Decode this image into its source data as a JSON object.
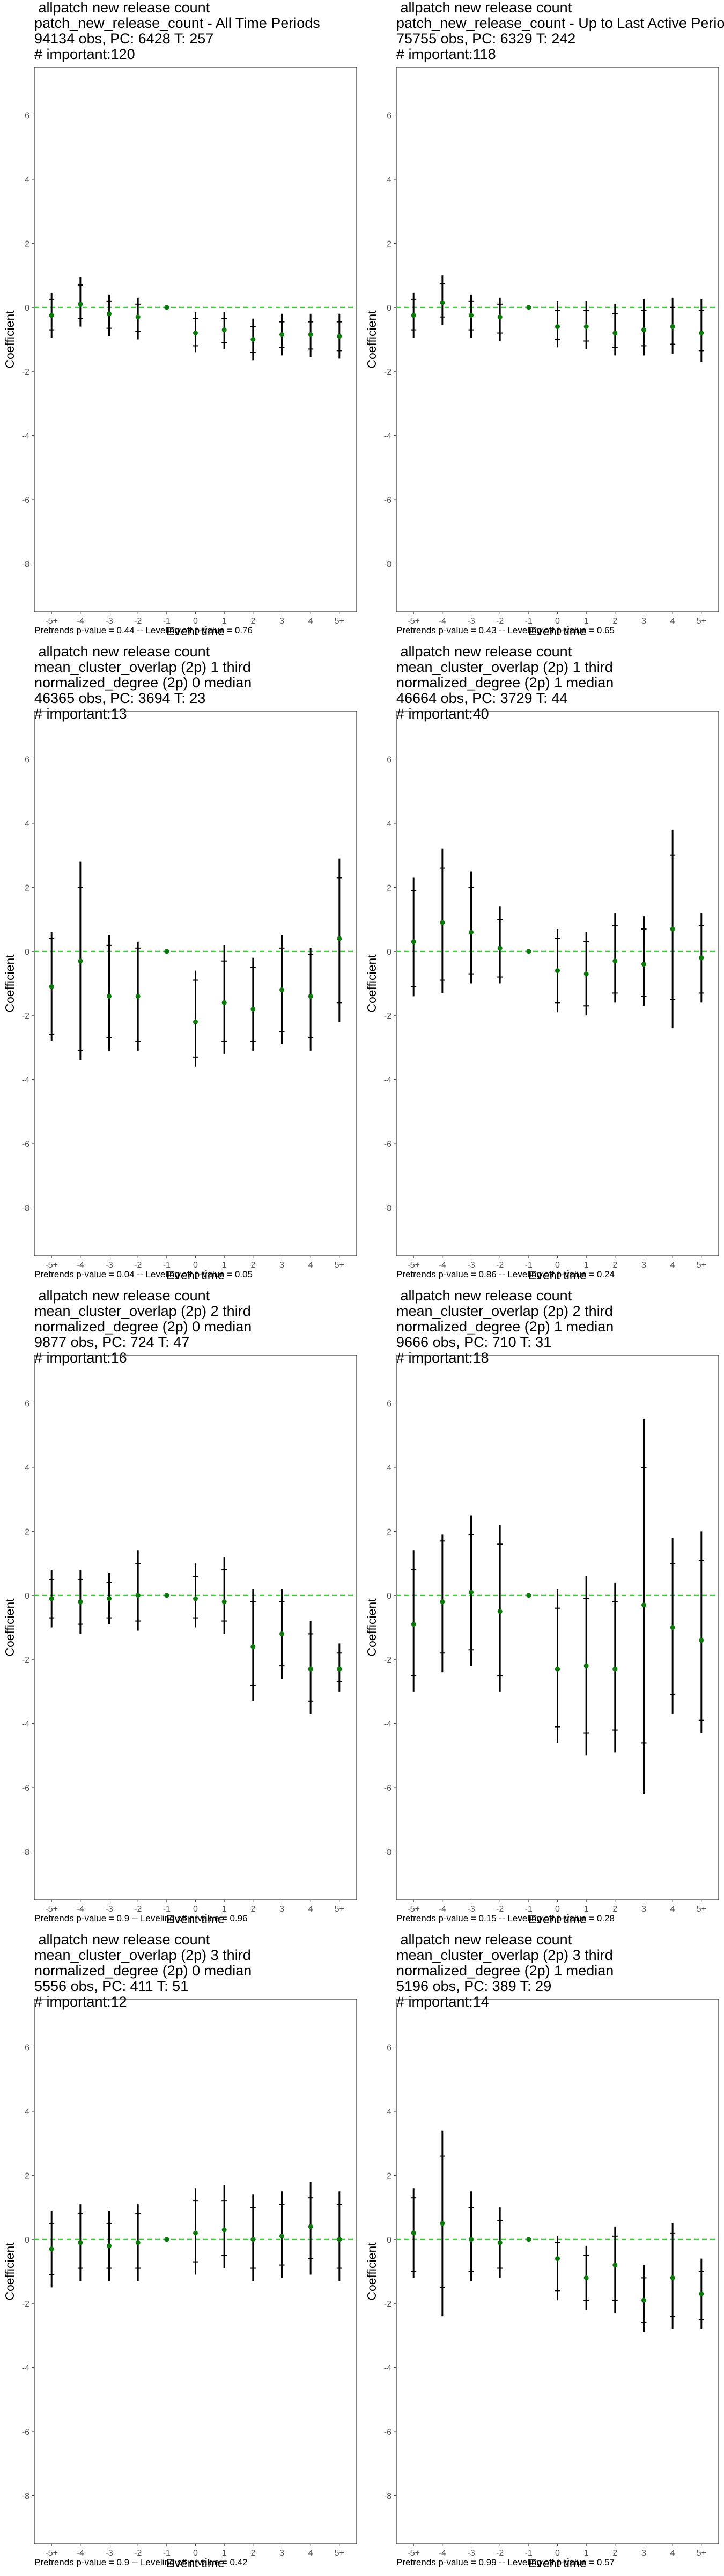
{
  "chart_data": [
    {
      "type": "scatter",
      "title_lines": [
        " allpatch new release count",
        "patch_new_release_count - All Time Periods",
        "94134 obs, PC: 6428 T: 257",
        "# important:120"
      ],
      "xlabel": "Event time",
      "ylabel": "Coefficient",
      "categories": [
        "-5+",
        "-4",
        "-3",
        "-2",
        "-1",
        "0",
        "1",
        "2",
        "3",
        "4",
        "5+"
      ],
      "ylim": [
        -9.5,
        7.5
      ],
      "yticks": [
        -8,
        -6,
        -4,
        -2,
        0,
        2,
        4,
        6
      ],
      "reference_line": 0,
      "estimate": [
        -0.25,
        0.1,
        -0.2,
        -0.3,
        0,
        -0.8,
        -0.7,
        -1.0,
        -0.85,
        -0.85,
        -0.9
      ],
      "ci_outer": [
        [
          -0.95,
          0.45
        ],
        [
          -0.6,
          0.95
        ],
        [
          -0.9,
          0.4
        ],
        [
          -1.0,
          0.3
        ],
        [
          0,
          0
        ],
        [
          -1.4,
          -0.15
        ],
        [
          -1.3,
          -0.15
        ],
        [
          -1.65,
          -0.35
        ],
        [
          -1.5,
          -0.2
        ],
        [
          -1.55,
          -0.2
        ],
        [
          -1.6,
          -0.2
        ]
      ],
      "ci_inner": [
        [
          -0.7,
          0.25
        ],
        [
          -0.35,
          0.7
        ],
        [
          -0.65,
          0.2
        ],
        [
          -0.75,
          0.1
        ],
        [
          0,
          0
        ],
        [
          -1.2,
          -0.35
        ],
        [
          -1.1,
          -0.35
        ],
        [
          -1.4,
          -0.6
        ],
        [
          -1.25,
          -0.45
        ],
        [
          -1.3,
          -0.45
        ],
        [
          -1.35,
          -0.45
        ]
      ],
      "footer": "Pretrends p-value = 0.44 -- Leveling off p-value = 0.76"
    },
    {
      "type": "scatter",
      "title_lines": [
        " allpatch new release count",
        "patch_new_release_count - Up to Last Active Period",
        "75755 obs, PC: 6329 T: 242",
        "# important:118"
      ],
      "xlabel": "Event time",
      "ylabel": "Coefficient",
      "categories": [
        "-5+",
        "-4",
        "-3",
        "-2",
        "-1",
        "0",
        "1",
        "2",
        "3",
        "4",
        "5+"
      ],
      "ylim": [
        -9.5,
        7.5
      ],
      "yticks": [
        -8,
        -6,
        -4,
        -2,
        0,
        2,
        4,
        6
      ],
      "reference_line": 0,
      "estimate": [
        -0.25,
        0.15,
        -0.25,
        -0.3,
        0,
        -0.6,
        -0.6,
        -0.8,
        -0.7,
        -0.6,
        -0.8
      ],
      "ci_outer": [
        [
          -0.95,
          0.45
        ],
        [
          -0.55,
          1.0
        ],
        [
          -0.95,
          0.4
        ],
        [
          -1.05,
          0.3
        ],
        [
          0,
          0
        ],
        [
          -1.25,
          0.2
        ],
        [
          -1.3,
          0.2
        ],
        [
          -1.5,
          0.1
        ],
        [
          -1.5,
          0.25
        ],
        [
          -1.45,
          0.3
        ],
        [
          -1.7,
          0.25
        ]
      ],
      "ci_inner": [
        [
          -0.7,
          0.25
        ],
        [
          -0.3,
          0.75
        ],
        [
          -0.7,
          0.2
        ],
        [
          -0.8,
          0.1
        ],
        [
          0,
          0
        ],
        [
          -1.0,
          -0.1
        ],
        [
          -1.05,
          -0.1
        ],
        [
          -1.25,
          -0.2
        ],
        [
          -1.2,
          -0.1
        ],
        [
          -1.15,
          0.0
        ],
        [
          -1.35,
          -0.1
        ]
      ],
      "footer": "Pretrends p-value = 0.43 -- Leveling off p-value = 0.65"
    },
    {
      "type": "scatter",
      "title_lines": [
        " allpatch new release count",
        "mean_cluster_overlap (2p) 1 third",
        "normalized_degree (2p) 0 median",
        "46365 obs, PC: 3694 T: 23",
        "# important:13"
      ],
      "xlabel": "Event time",
      "ylabel": "Coefficient",
      "categories": [
        "-5+",
        "-4",
        "-3",
        "-2",
        "-1",
        "0",
        "1",
        "2",
        "3",
        "4",
        "5+"
      ],
      "ylim": [
        -9.5,
        7.5
      ],
      "yticks": [
        -8,
        -6,
        -4,
        -2,
        0,
        2,
        4,
        6
      ],
      "reference_line": 0,
      "estimate": [
        -1.1,
        -0.3,
        -1.4,
        -1.4,
        0,
        -2.2,
        -1.6,
        -1.8,
        -1.2,
        -1.4,
        0.4
      ],
      "ci_outer": [
        [
          -2.8,
          0.6
        ],
        [
          -3.4,
          2.8
        ],
        [
          -3.1,
          0.5
        ],
        [
          -3.1,
          0.3
        ],
        [
          0,
          0
        ],
        [
          -3.6,
          -0.6
        ],
        [
          -3.2,
          0.2
        ],
        [
          -3.1,
          -0.2
        ],
        [
          -2.9,
          0.5
        ],
        [
          -3.1,
          0.1
        ],
        [
          -2.2,
          2.9
        ]
      ],
      "ci_inner": [
        [
          -2.6,
          0.4
        ],
        [
          -3.1,
          2.0
        ],
        [
          -2.7,
          0.2
        ],
        [
          -2.8,
          0.1
        ],
        [
          0,
          0
        ],
        [
          -3.3,
          -0.9
        ],
        [
          -2.8,
          -0.3
        ],
        [
          -2.8,
          -0.5
        ],
        [
          -2.5,
          0.1
        ],
        [
          -2.7,
          -0.1
        ],
        [
          -1.6,
          2.3
        ]
      ],
      "footer": "Pretrends p-value = 0.04 -- Leveling off p-value = 0.05"
    },
    {
      "type": "scatter",
      "title_lines": [
        " allpatch new release count",
        "mean_cluster_overlap (2p) 1 third",
        "normalized_degree (2p) 1 median",
        "46664 obs, PC: 3729 T: 44",
        "# important:40"
      ],
      "xlabel": "Event time",
      "ylabel": "Coefficient",
      "categories": [
        "-5+",
        "-4",
        "-3",
        "-2",
        "-1",
        "0",
        "1",
        "2",
        "3",
        "4",
        "5+"
      ],
      "ylim": [
        -9.5,
        7.5
      ],
      "yticks": [
        -8,
        -6,
        -4,
        -2,
        0,
        2,
        4,
        6
      ],
      "reference_line": 0,
      "estimate": [
        0.3,
        0.9,
        0.6,
        0.1,
        0,
        -0.6,
        -0.7,
        -0.3,
        -0.4,
        0.7,
        -0.2
      ],
      "ci_outer": [
        [
          -1.4,
          2.3
        ],
        [
          -1.3,
          3.2
        ],
        [
          -1.0,
          2.5
        ],
        [
          -1.0,
          1.4
        ],
        [
          0,
          0
        ],
        [
          -1.9,
          0.7
        ],
        [
          -2.0,
          0.6
        ],
        [
          -1.6,
          1.2
        ],
        [
          -1.7,
          1.1
        ],
        [
          -2.4,
          3.8
        ],
        [
          -1.6,
          1.2
        ]
      ],
      "ci_inner": [
        [
          -1.1,
          1.9
        ],
        [
          -0.9,
          2.6
        ],
        [
          -0.7,
          2.0
        ],
        [
          -0.8,
          1.0
        ],
        [
          0,
          0
        ],
        [
          -1.6,
          0.4
        ],
        [
          -1.7,
          0.3
        ],
        [
          -1.3,
          0.8
        ],
        [
          -1.4,
          0.7
        ],
        [
          -1.5,
          3.0
        ],
        [
          -1.3,
          0.8
        ]
      ],
      "footer": "Pretrends p-value = 0.86 -- Leveling off p-value = 0.24"
    },
    {
      "type": "scatter",
      "title_lines": [
        " allpatch new release count",
        "mean_cluster_overlap (2p) 2 third",
        "normalized_degree (2p) 0 median",
        "9877 obs, PC: 724 T: 47",
        "# important:16"
      ],
      "xlabel": "Event time",
      "ylabel": "Coefficient",
      "categories": [
        "-5+",
        "-4",
        "-3",
        "-2",
        "-1",
        "0",
        "1",
        "2",
        "3",
        "4",
        "5+"
      ],
      "ylim": [
        -9.5,
        7.5
      ],
      "yticks": [
        -8,
        -6,
        -4,
        -2,
        0,
        2,
        4,
        6
      ],
      "reference_line": 0,
      "estimate": [
        -0.1,
        -0.2,
        -0.1,
        0.0,
        0,
        -0.1,
        -0.2,
        -1.6,
        -1.2,
        -2.3,
        -2.3
      ],
      "ci_outer": [
        [
          -1.0,
          0.8
        ],
        [
          -1.2,
          0.8
        ],
        [
          -0.9,
          0.7
        ],
        [
          -1.1,
          1.4
        ],
        [
          0,
          0
        ],
        [
          -1.0,
          1.0
        ],
        [
          -1.2,
          1.2
        ],
        [
          -3.3,
          0.2
        ],
        [
          -2.6,
          0.2
        ],
        [
          -3.7,
          -0.8
        ],
        [
          -3.0,
          -1.5
        ]
      ],
      "ci_inner": [
        [
          -0.7,
          0.5
        ],
        [
          -0.9,
          0.5
        ],
        [
          -0.7,
          0.4
        ],
        [
          -0.8,
          1.0
        ],
        [
          0,
          0
        ],
        [
          -0.7,
          0.6
        ],
        [
          -0.8,
          0.8
        ],
        [
          -2.8,
          -0.2
        ],
        [
          -2.2,
          -0.2
        ],
        [
          -3.3,
          -1.2
        ],
        [
          -2.7,
          -1.8
        ]
      ],
      "footer": "Pretrends p-value = 0.9 -- Leveling off p-value = 0.96"
    },
    {
      "type": "scatter",
      "title_lines": [
        " allpatch new release count",
        "mean_cluster_overlap (2p) 2 third",
        "normalized_degree (2p) 1 median",
        "9666 obs, PC: 710 T: 31",
        "# important:18"
      ],
      "xlabel": "Event time",
      "ylabel": "Coefficient",
      "categories": [
        "-5+",
        "-4",
        "-3",
        "-2",
        "-1",
        "0",
        "1",
        "2",
        "3",
        "4",
        "5+"
      ],
      "ylim": [
        -9.5,
        7.5
      ],
      "yticks": [
        -8,
        -6,
        -4,
        -2,
        0,
        2,
        4,
        6
      ],
      "reference_line": 0,
      "estimate": [
        -0.9,
        -0.2,
        0.1,
        -0.5,
        0,
        -2.3,
        -2.2,
        -2.3,
        -0.3,
        -1.0,
        -1.4
      ],
      "ci_outer": [
        [
          -3.0,
          1.4
        ],
        [
          -2.4,
          1.9
        ],
        [
          -2.2,
          2.5
        ],
        [
          -3.0,
          2.2
        ],
        [
          0,
          0
        ],
        [
          -4.6,
          0.2
        ],
        [
          -5.0,
          0.6
        ],
        [
          -4.9,
          0.4
        ],
        [
          -6.2,
          5.5
        ],
        [
          -3.7,
          1.8
        ],
        [
          -4.3,
          2.0
        ]
      ],
      "ci_inner": [
        [
          -2.5,
          0.8
        ],
        [
          -1.8,
          1.7
        ],
        [
          -1.7,
          1.9
        ],
        [
          -2.5,
          1.6
        ],
        [
          0,
          0
        ],
        [
          -4.1,
          -0.4
        ],
        [
          -4.3,
          -0.1
        ],
        [
          -4.2,
          -0.2
        ],
        [
          -4.6,
          4.0
        ],
        [
          -3.1,
          1.0
        ],
        [
          -3.9,
          1.1
        ]
      ],
      "footer": "Pretrends p-value = 0.15 -- Leveling off p-value = 0.28"
    },
    {
      "type": "scatter",
      "title_lines": [
        " allpatch new release count",
        "mean_cluster_overlap (2p) 3 third",
        "normalized_degree (2p) 0 median",
        "5556 obs, PC: 411 T: 51",
        "# important:12"
      ],
      "xlabel": "Event time",
      "ylabel": "Coefficient",
      "categories": [
        "-5+",
        "-4",
        "-3",
        "-2",
        "-1",
        "0",
        "1",
        "2",
        "3",
        "4",
        "5+"
      ],
      "ylim": [
        -9.5,
        7.5
      ],
      "yticks": [
        -8,
        -6,
        -4,
        -2,
        0,
        2,
        4,
        6
      ],
      "reference_line": 0,
      "estimate": [
        -0.3,
        -0.1,
        -0.2,
        -0.1,
        0,
        0.2,
        0.3,
        0.0,
        0.1,
        0.4,
        0.0
      ],
      "ci_outer": [
        [
          -1.5,
          0.9
        ],
        [
          -1.3,
          1.1
        ],
        [
          -1.3,
          0.9
        ],
        [
          -1.3,
          1.1
        ],
        [
          0,
          0
        ],
        [
          -1.1,
          1.6
        ],
        [
          -0.9,
          1.7
        ],
        [
          -1.3,
          1.4
        ],
        [
          -1.2,
          1.5
        ],
        [
          -1.1,
          1.8
        ],
        [
          -1.3,
          1.5
        ]
      ],
      "ci_inner": [
        [
          -1.1,
          0.5
        ],
        [
          -0.9,
          0.8
        ],
        [
          -0.9,
          0.5
        ],
        [
          -0.9,
          0.8
        ],
        [
          0,
          0
        ],
        [
          -0.7,
          1.2
        ],
        [
          -0.5,
          1.2
        ],
        [
          -0.9,
          1.0
        ],
        [
          -0.8,
          1.1
        ],
        [
          -0.6,
          1.3
        ],
        [
          -0.9,
          1.1
        ]
      ],
      "footer": "Pretrends p-value = 0.9 -- Leveling off p-value = 0.42"
    },
    {
      "type": "scatter",
      "title_lines": [
        " allpatch new release count",
        "mean_cluster_overlap (2p) 3 third",
        "normalized_degree (2p) 1 median",
        "5196 obs, PC: 389 T: 29",
        "# important:14"
      ],
      "xlabel": "Event time",
      "ylabel": "Coefficient",
      "categories": [
        "-5+",
        "-4",
        "-3",
        "-2",
        "-1",
        "0",
        "1",
        "2",
        "3",
        "4",
        "5+"
      ],
      "ylim": [
        -9.5,
        7.5
      ],
      "yticks": [
        -8,
        -6,
        -4,
        -2,
        0,
        2,
        4,
        6
      ],
      "reference_line": 0,
      "estimate": [
        0.2,
        0.5,
        0.0,
        -0.1,
        0,
        -0.6,
        -1.2,
        -0.8,
        -1.9,
        -1.2,
        -1.7
      ],
      "ci_outer": [
        [
          -1.2,
          1.6
        ],
        [
          -2.4,
          3.4
        ],
        [
          -1.3,
          1.5
        ],
        [
          -1.2,
          1.0
        ],
        [
          0,
          0
        ],
        [
          -1.9,
          0.1
        ],
        [
          -2.2,
          -0.2
        ],
        [
          -2.3,
          0.4
        ],
        [
          -2.9,
          -0.8
        ],
        [
          -2.8,
          0.5
        ],
        [
          -2.8,
          -0.6
        ]
      ],
      "ci_inner": [
        [
          -1.0,
          1.3
        ],
        [
          -1.5,
          2.6
        ],
        [
          -1.0,
          1.0
        ],
        [
          -0.9,
          0.6
        ],
        [
          0,
          0
        ],
        [
          -1.6,
          -0.1
        ],
        [
          -1.9,
          -0.5
        ],
        [
          -1.9,
          0.1
        ],
        [
          -2.6,
          -1.2
        ],
        [
          -2.4,
          0.2
        ],
        [
          -2.5,
          -1.0
        ]
      ],
      "footer": "Pretrends p-value = 0.99 -- Leveling off p-value = 0.57"
    }
  ],
  "colors": {
    "point": "#0b7a0b",
    "reference_line": "#3ec43e",
    "error_bar": "#000000",
    "tick_text": "#4d4d4d",
    "panel_border": "#333333"
  }
}
